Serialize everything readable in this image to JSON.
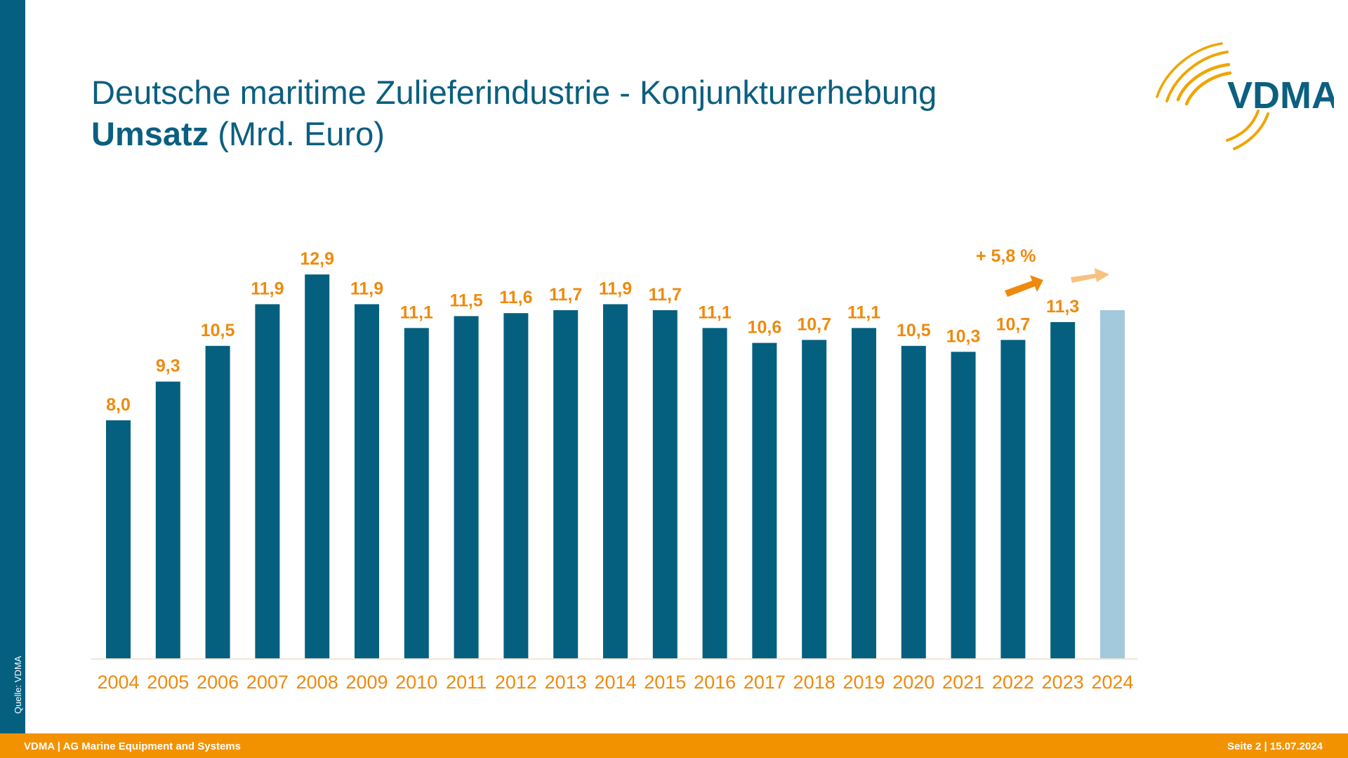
{
  "slide": {
    "title_line1": "Deutsche maritime Zulieferindustrie - Konjunkturerhebung",
    "title_line2_bold": "Umsatz",
    "title_line2_rest": " (Mrd. Euro)",
    "logo_text": "VDMA",
    "source": "Quelle: VDMA",
    "footer_left": "VDMA | AG Marine Equipment and Systems",
    "footer_right": "Seite 2 | 15.07.2024"
  },
  "colors": {
    "primary_blue": "#05607f",
    "forecast_blue": "#a3c9dc",
    "orange": "#f39200",
    "label_orange": "#ee8a0e",
    "arrow_light": "#f7c27f"
  },
  "chart_data": {
    "type": "bar",
    "title": "Umsatz (Mrd. Euro)",
    "xlabel": "",
    "ylabel": "",
    "ylim": [
      0,
      13.5
    ],
    "grid": false,
    "categories": [
      "2004",
      "2005",
      "2006",
      "2007",
      "2008",
      "2009",
      "2010",
      "2011",
      "2012",
      "2013",
      "2014",
      "2015",
      "2016",
      "2017",
      "2018",
      "2019",
      "2020",
      "2021",
      "2022",
      "2023",
      "2024"
    ],
    "values": [
      8.0,
      9.3,
      10.5,
      11.9,
      12.9,
      11.9,
      11.1,
      11.5,
      11.6,
      11.7,
      11.9,
      11.7,
      11.1,
      10.6,
      10.7,
      11.1,
      10.5,
      10.3,
      10.7,
      11.3,
      11.7
    ],
    "data_labels": [
      "8,0",
      "9,3",
      "10,5",
      "11,9",
      "12,9",
      "11,9",
      "11,1",
      "11,5",
      "11,6",
      "11,7",
      "11,9",
      "11,7",
      "11,1",
      "10,6",
      "10,7",
      "11,1",
      "10,5",
      "10,3",
      "10,7",
      "11,3",
      ""
    ],
    "forecast": [
      false,
      false,
      false,
      false,
      false,
      false,
      false,
      false,
      false,
      false,
      false,
      false,
      false,
      false,
      false,
      false,
      false,
      false,
      false,
      false,
      true
    ],
    "annotation": {
      "text": "+ 5,8 %",
      "description": "growth arrows from 2023 toward 2024 forecast"
    }
  }
}
